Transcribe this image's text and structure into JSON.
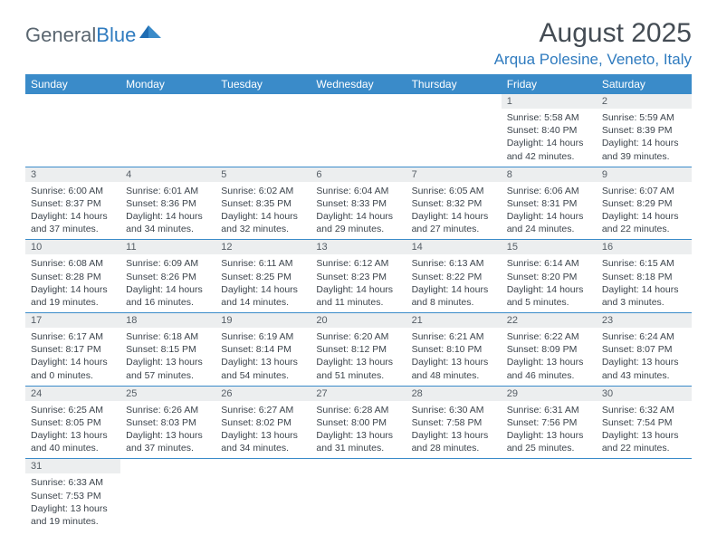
{
  "logo": {
    "text1": "General",
    "text2": "Blue"
  },
  "title": "August 2025",
  "location": "Arqua Polesine, Veneto, Italy",
  "colors": {
    "header_bg": "#3a8bc9",
    "header_text": "#ffffff",
    "daynum_bg": "#eceeef",
    "border": "#3a8bc9",
    "title_color": "#444c54",
    "location_color": "#2f7bbf",
    "logo_gray": "#5a6670",
    "logo_blue": "#2f7bbf",
    "body_text": "#3c444c"
  },
  "weekdays": [
    "Sunday",
    "Monday",
    "Tuesday",
    "Wednesday",
    "Thursday",
    "Friday",
    "Saturday"
  ],
  "weeks": [
    [
      null,
      null,
      null,
      null,
      null,
      {
        "n": "1",
        "sunrise": "5:58 AM",
        "sunset": "8:40 PM",
        "dl": "14 hours and 42 minutes."
      },
      {
        "n": "2",
        "sunrise": "5:59 AM",
        "sunset": "8:39 PM",
        "dl": "14 hours and 39 minutes."
      }
    ],
    [
      {
        "n": "3",
        "sunrise": "6:00 AM",
        "sunset": "8:37 PM",
        "dl": "14 hours and 37 minutes."
      },
      {
        "n": "4",
        "sunrise": "6:01 AM",
        "sunset": "8:36 PM",
        "dl": "14 hours and 34 minutes."
      },
      {
        "n": "5",
        "sunrise": "6:02 AM",
        "sunset": "8:35 PM",
        "dl": "14 hours and 32 minutes."
      },
      {
        "n": "6",
        "sunrise": "6:04 AM",
        "sunset": "8:33 PM",
        "dl": "14 hours and 29 minutes."
      },
      {
        "n": "7",
        "sunrise": "6:05 AM",
        "sunset": "8:32 PM",
        "dl": "14 hours and 27 minutes."
      },
      {
        "n": "8",
        "sunrise": "6:06 AM",
        "sunset": "8:31 PM",
        "dl": "14 hours and 24 minutes."
      },
      {
        "n": "9",
        "sunrise": "6:07 AM",
        "sunset": "8:29 PM",
        "dl": "14 hours and 22 minutes."
      }
    ],
    [
      {
        "n": "10",
        "sunrise": "6:08 AM",
        "sunset": "8:28 PM",
        "dl": "14 hours and 19 minutes."
      },
      {
        "n": "11",
        "sunrise": "6:09 AM",
        "sunset": "8:26 PM",
        "dl": "14 hours and 16 minutes."
      },
      {
        "n": "12",
        "sunrise": "6:11 AM",
        "sunset": "8:25 PM",
        "dl": "14 hours and 14 minutes."
      },
      {
        "n": "13",
        "sunrise": "6:12 AM",
        "sunset": "8:23 PM",
        "dl": "14 hours and 11 minutes."
      },
      {
        "n": "14",
        "sunrise": "6:13 AM",
        "sunset": "8:22 PM",
        "dl": "14 hours and 8 minutes."
      },
      {
        "n": "15",
        "sunrise": "6:14 AM",
        "sunset": "8:20 PM",
        "dl": "14 hours and 5 minutes."
      },
      {
        "n": "16",
        "sunrise": "6:15 AM",
        "sunset": "8:18 PM",
        "dl": "14 hours and 3 minutes."
      }
    ],
    [
      {
        "n": "17",
        "sunrise": "6:17 AM",
        "sunset": "8:17 PM",
        "dl": "14 hours and 0 minutes."
      },
      {
        "n": "18",
        "sunrise": "6:18 AM",
        "sunset": "8:15 PM",
        "dl": "13 hours and 57 minutes."
      },
      {
        "n": "19",
        "sunrise": "6:19 AM",
        "sunset": "8:14 PM",
        "dl": "13 hours and 54 minutes."
      },
      {
        "n": "20",
        "sunrise": "6:20 AM",
        "sunset": "8:12 PM",
        "dl": "13 hours and 51 minutes."
      },
      {
        "n": "21",
        "sunrise": "6:21 AM",
        "sunset": "8:10 PM",
        "dl": "13 hours and 48 minutes."
      },
      {
        "n": "22",
        "sunrise": "6:22 AM",
        "sunset": "8:09 PM",
        "dl": "13 hours and 46 minutes."
      },
      {
        "n": "23",
        "sunrise": "6:24 AM",
        "sunset": "8:07 PM",
        "dl": "13 hours and 43 minutes."
      }
    ],
    [
      {
        "n": "24",
        "sunrise": "6:25 AM",
        "sunset": "8:05 PM",
        "dl": "13 hours and 40 minutes."
      },
      {
        "n": "25",
        "sunrise": "6:26 AM",
        "sunset": "8:03 PM",
        "dl": "13 hours and 37 minutes."
      },
      {
        "n": "26",
        "sunrise": "6:27 AM",
        "sunset": "8:02 PM",
        "dl": "13 hours and 34 minutes."
      },
      {
        "n": "27",
        "sunrise": "6:28 AM",
        "sunset": "8:00 PM",
        "dl": "13 hours and 31 minutes."
      },
      {
        "n": "28",
        "sunrise": "6:30 AM",
        "sunset": "7:58 PM",
        "dl": "13 hours and 28 minutes."
      },
      {
        "n": "29",
        "sunrise": "6:31 AM",
        "sunset": "7:56 PM",
        "dl": "13 hours and 25 minutes."
      },
      {
        "n": "30",
        "sunrise": "6:32 AM",
        "sunset": "7:54 PM",
        "dl": "13 hours and 22 minutes."
      }
    ],
    [
      {
        "n": "31",
        "sunrise": "6:33 AM",
        "sunset": "7:53 PM",
        "dl": "13 hours and 19 minutes."
      },
      null,
      null,
      null,
      null,
      null,
      null
    ]
  ]
}
